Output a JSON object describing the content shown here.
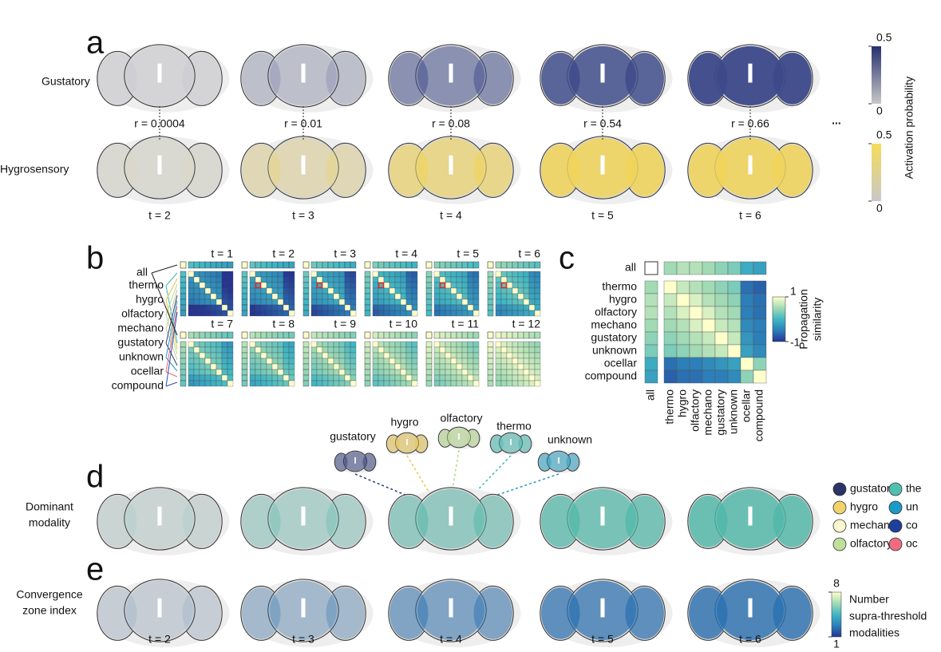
{
  "a": {
    "label": "a",
    "rows": [
      {
        "name": "Gustatory",
        "color": "#3d4a8a"
      },
      {
        "name": "Hygrosensory",
        "color": "#f0d458"
      }
    ],
    "correlations": [
      "r = 0.0004",
      "r = 0.01",
      "r = 0.08",
      "r = 0.54",
      "r = 0.66"
    ],
    "times": [
      "t = 2",
      "t = 3",
      "t = 4",
      "t = 5",
      "t = 6"
    ],
    "colorbars": [
      {
        "color": "#27306e",
        "ticks": [
          0.5,
          0
        ]
      },
      {
        "color": "#f5dc5a",
        "ticks": [
          0.5,
          0
        ]
      }
    ],
    "colorbar_label": "Activation probability",
    "more": "..."
  },
  "b": {
    "label": "b",
    "all": "all",
    "modalities": [
      {
        "name": "thermo",
        "color": "#3fb8b0"
      },
      {
        "name": "hygro",
        "color": "#e8c64a"
      },
      {
        "name": "olfactory",
        "color": "#b5d98a"
      },
      {
        "name": "mechano",
        "color": "#c2c99a"
      },
      {
        "name": "gustatory",
        "color": "#2e3a78"
      },
      {
        "name": "unknown",
        "color": "#1f9bc4"
      },
      {
        "name": "ocellar",
        "color": "#f0657a"
      },
      {
        "name": "compound",
        "color": "#2b4fb0"
      }
    ],
    "times": [
      "t = 1",
      "t = 2",
      "t = 3",
      "t = 4",
      "t = 5",
      "t = 6",
      "t = 7",
      "t = 8",
      "t = 9",
      "t = 10",
      "t = 11",
      "t = 12"
    ]
  },
  "c": {
    "label": "c",
    "all": "all",
    "all_values": [
      0.5,
      0.6,
      0.6,
      0.5,
      0.4,
      0.3,
      -0.1,
      -0.2
    ],
    "matrix": [
      [
        1,
        0.7,
        0.6,
        0.5,
        0.4,
        0.3,
        -0.6,
        -0.7
      ],
      [
        0.7,
        1,
        0.8,
        0.6,
        0.5,
        0.4,
        -0.5,
        -0.6
      ],
      [
        0.6,
        0.8,
        1,
        0.8,
        0.6,
        0.5,
        -0.5,
        -0.6
      ],
      [
        0.5,
        0.6,
        0.8,
        1,
        0.7,
        0.6,
        -0.4,
        -0.5
      ],
      [
        0.4,
        0.5,
        0.6,
        0.7,
        1,
        0.7,
        -0.3,
        -0.5
      ],
      [
        0.3,
        0.4,
        0.5,
        0.6,
        0.7,
        1,
        -0.2,
        -0.4
      ],
      [
        -0.6,
        -0.5,
        -0.5,
        -0.4,
        -0.3,
        -0.2,
        1,
        0.4
      ],
      [
        -0.7,
        -0.6,
        -0.6,
        -0.5,
        -0.5,
        -0.4,
        0.4,
        1
      ]
    ],
    "colorscale": [
      "#253494",
      "#2c7fb8",
      "#41b6c4",
      "#a1dab4",
      "#ffffcc"
    ],
    "colorbar_ticks": [
      1,
      -1
    ],
    "colorbar_label": [
      "Propagation",
      "similarity"
    ]
  },
  "d": {
    "label": "d",
    "row_label": [
      "Dominant",
      "modality"
    ],
    "examples": [
      {
        "name": "gustatory",
        "color": "#2e3a78"
      },
      {
        "name": "hygro",
        "color": "#e8c64a"
      },
      {
        "name": "olfactory",
        "color": "#b5d98a"
      },
      {
        "name": "thermo",
        "color": "#3fb8b0"
      },
      {
        "name": "unknown",
        "color": "#1f9bc4"
      }
    ],
    "legend": [
      {
        "name": "gustatory",
        "color": "#2a3466"
      },
      {
        "name": "hygro",
        "color": "#f0d36a"
      },
      {
        "name": "mechano",
        "color": "#fbf7d0"
      },
      {
        "name": "olfactory",
        "color": "#bfe09a"
      },
      {
        "name": "the",
        "color": "#4fc0b0"
      },
      {
        "name": "un",
        "color": "#1a9ac4"
      },
      {
        "name": "co",
        "color": "#1f3f9c"
      },
      {
        "name": "oc",
        "color": "#f06c80"
      }
    ]
  },
  "e": {
    "label": "e",
    "row_label": [
      "Convergence",
      "zone index"
    ],
    "colorbar_ticks": [
      8,
      1
    ],
    "colorbar_label": [
      "Number",
      "supra-threshold",
      "modalities"
    ],
    "times": [
      "t = 2",
      "t = 3",
      "t = 4",
      "t = 5",
      "t = 6"
    ]
  }
}
